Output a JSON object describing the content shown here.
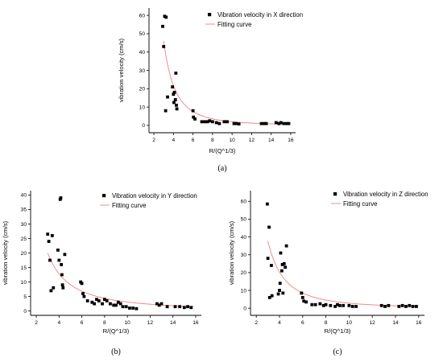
{
  "colors": {
    "points": "#000000",
    "fit": "#f08080"
  },
  "chart_data": [
    {
      "type": "scatter",
      "panel_label": "(a)",
      "xlabel": "R/(Q^1/3)",
      "ylabel": "vibration velocity (cm/s)",
      "xlim": [
        1.5,
        16.5
      ],
      "ylim": [
        -4,
        64
      ],
      "xticks": [
        2,
        4,
        6,
        8,
        10,
        12,
        14,
        16
      ],
      "yticks": [
        0,
        10,
        20,
        30,
        40,
        50,
        60
      ],
      "legend_position": "top-right",
      "series": [
        {
          "name": "Vibration velocity in X direction",
          "points": [
            [
              2.9,
              54
            ],
            [
              3.0,
              43
            ],
            [
              3.1,
              59.5
            ],
            [
              3.25,
              59
            ],
            [
              3.2,
              8
            ],
            [
              3.4,
              15.5
            ],
            [
              3.9,
              21
            ],
            [
              4.0,
              17
            ],
            [
              4.05,
              12.5
            ],
            [
              4.1,
              18
            ],
            [
              4.2,
              14
            ],
            [
              4.25,
              28.5
            ],
            [
              4.3,
              11
            ],
            [
              4.35,
              9
            ],
            [
              6.0,
              8
            ],
            [
              6.05,
              4.5
            ],
            [
              6.2,
              3.5
            ],
            [
              6.9,
              2
            ],
            [
              7.2,
              2
            ],
            [
              7.5,
              2
            ],
            [
              7.7,
              2.5
            ],
            [
              8.0,
              2
            ],
            [
              8.4,
              1.5
            ],
            [
              8.7,
              1
            ],
            [
              9.2,
              2
            ],
            [
              9.5,
              2
            ],
            [
              10.2,
              1
            ],
            [
              10.4,
              1
            ],
            [
              10.7,
              0.8
            ],
            [
              13.0,
              1
            ],
            [
              13.3,
              1
            ],
            [
              13.5,
              1
            ],
            [
              14.5,
              1.5
            ],
            [
              14.8,
              1
            ],
            [
              15.0,
              1.5
            ],
            [
              15.3,
              1
            ],
            [
              15.6,
              1
            ],
            [
              15.8,
              1
            ]
          ]
        },
        {
          "name": "Fitting curve",
          "fit": {
            "a": 800,
            "b": 2.6,
            "x_start": 3.0,
            "x_end": 15.8
          }
        }
      ]
    },
    {
      "type": "scatter",
      "panel_label": "(b)",
      "xlabel": "R/(Q^1/3)",
      "ylabel": "vibration velocity (cm/s)",
      "xlim": [
        1.5,
        16.5
      ],
      "ylim": [
        -1.5,
        41.5
      ],
      "xticks": [
        2,
        4,
        6,
        8,
        10,
        12,
        14,
        16
      ],
      "yticks": [
        0,
        5,
        10,
        15,
        20,
        25,
        30,
        35,
        40
      ],
      "legend_position": "top-right",
      "series": [
        {
          "name": "Vibration velocity in Y direction",
          "points": [
            [
              3.0,
              26.5
            ],
            [
              3.1,
              24
            ],
            [
              3.2,
              17.5
            ],
            [
              3.3,
              7
            ],
            [
              3.4,
              26
            ],
            [
              3.5,
              8
            ],
            [
              3.9,
              21
            ],
            [
              4.0,
              17.5
            ],
            [
              4.1,
              38.5
            ],
            [
              4.15,
              39
            ],
            [
              4.2,
              16
            ],
            [
              4.25,
              12.5
            ],
            [
              4.3,
              9
            ],
            [
              4.35,
              8
            ],
            [
              4.5,
              19.5
            ],
            [
              5.9,
              10
            ],
            [
              6.0,
              9.5
            ],
            [
              6.1,
              6
            ],
            [
              6.2,
              5
            ],
            [
              6.5,
              3.5
            ],
            [
              6.9,
              3
            ],
            [
              7.1,
              2.5
            ],
            [
              7.3,
              4
            ],
            [
              7.5,
              3.5
            ],
            [
              7.8,
              2.5
            ],
            [
              8.0,
              4
            ],
            [
              8.2,
              3.5
            ],
            [
              8.5,
              2.5
            ],
            [
              8.8,
              2
            ],
            [
              9.0,
              2
            ],
            [
              9.2,
              3
            ],
            [
              9.4,
              2.5
            ],
            [
              9.6,
              1.5
            ],
            [
              9.9,
              1.5
            ],
            [
              10.2,
              1
            ],
            [
              10.5,
              1
            ],
            [
              10.8,
              0.8
            ],
            [
              12.6,
              2.5
            ],
            [
              12.8,
              2
            ],
            [
              13.0,
              2.5
            ],
            [
              13.5,
              1.5
            ],
            [
              14.2,
              1.5
            ],
            [
              14.6,
              1.5
            ],
            [
              15.0,
              1.2
            ],
            [
              15.3,
              1.5
            ],
            [
              15.6,
              1.2
            ]
          ]
        },
        {
          "name": "Fitting curve",
          "fit": {
            "a": 110,
            "b": 1.55,
            "x_start": 3.0,
            "x_end": 15.8
          }
        }
      ]
    },
    {
      "type": "scatter",
      "panel_label": "(c)",
      "xlabel": "R/(Q^1/3)",
      "ylabel": "vibration velocity (cm/s)",
      "xlim": [
        1.5,
        16.5
      ],
      "ylim": [
        -4,
        66
      ],
      "xticks": [
        2,
        4,
        6,
        8,
        10,
        12,
        14,
        16
      ],
      "yticks": [
        0,
        10,
        20,
        30,
        40,
        50,
        60
      ],
      "legend_position": "top-right",
      "series": [
        {
          "name": "Vibration velocity in Z direction",
          "points": [
            [
              2.95,
              58.5
            ],
            [
              3.0,
              28
            ],
            [
              3.1,
              45.5
            ],
            [
              3.15,
              6
            ],
            [
              3.3,
              24
            ],
            [
              3.35,
              7
            ],
            [
              3.9,
              8
            ],
            [
              4.0,
              10
            ],
            [
              4.05,
              14
            ],
            [
              4.1,
              31
            ],
            [
              4.2,
              21
            ],
            [
              4.25,
              24.5
            ],
            [
              4.3,
              8.5
            ],
            [
              4.4,
              25
            ],
            [
              4.5,
              23
            ],
            [
              4.6,
              35
            ],
            [
              5.9,
              8.5
            ],
            [
              6.0,
              6
            ],
            [
              6.1,
              4
            ],
            [
              6.3,
              3.5
            ],
            [
              6.8,
              2
            ],
            [
              7.1,
              2
            ],
            [
              7.5,
              2.5
            ],
            [
              7.8,
              1.5
            ],
            [
              8.0,
              2
            ],
            [
              8.4,
              1.5
            ],
            [
              8.8,
              1
            ],
            [
              9.0,
              2
            ],
            [
              9.2,
              1.5
            ],
            [
              9.5,
              1.5
            ],
            [
              10.0,
              1.5
            ],
            [
              10.3,
              1
            ],
            [
              10.6,
              1
            ],
            [
              12.8,
              1.5
            ],
            [
              13.1,
              1
            ],
            [
              13.4,
              1.5
            ],
            [
              14.3,
              1
            ],
            [
              14.6,
              1.5
            ],
            [
              14.9,
              1
            ],
            [
              15.2,
              1.5
            ],
            [
              15.5,
              1
            ],
            [
              15.8,
              1
            ]
          ]
        },
        {
          "name": "Fitting curve",
          "fit": {
            "a": 400,
            "b": 2.15,
            "x_start": 3.0,
            "x_end": 15.8
          }
        }
      ]
    }
  ]
}
